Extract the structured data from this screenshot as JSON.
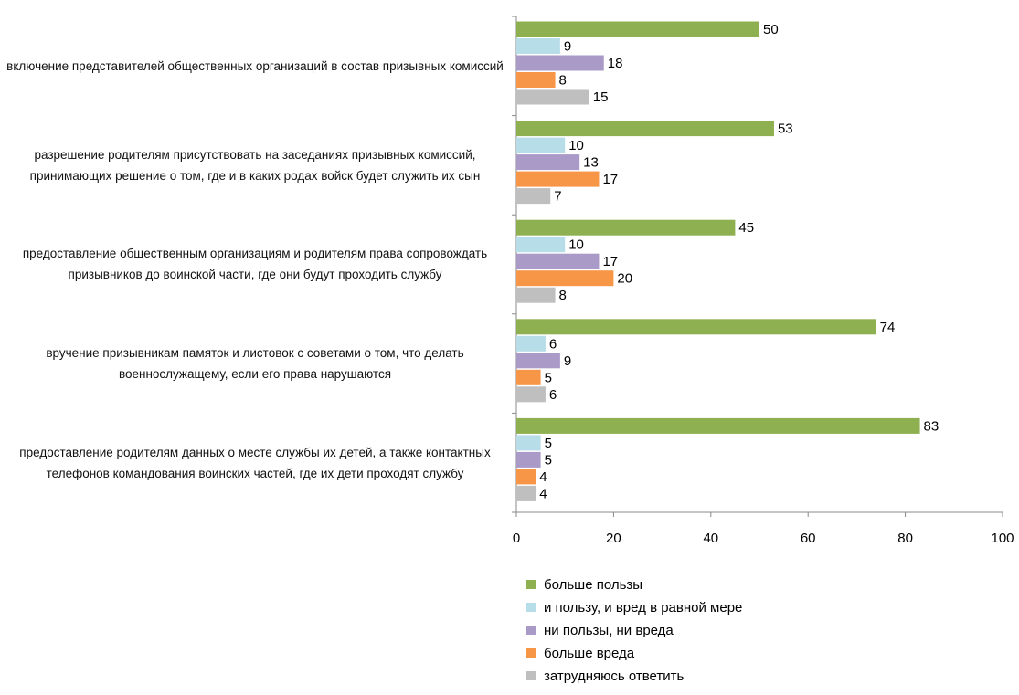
{
  "chart_data": {
    "type": "barh",
    "categories": [
      "включение представителей общественных организаций в состав призывных комиссий",
      "разрешение родителям присутствовать на заседаниях призывных комиссий, принимающих решение о том, где и в каких родах войск будет служить их сын",
      "предоставление общественным организациям и родителям права сопровождать призывников до воинской части, где они будут проходить службу",
      "вручение призывникам памяток и листовок с советами о том, что делать военнослужащему, если его права нарушаются",
      "предоставление родителям данных о месте службы их детей, а также контактных телефонов командования воинских частей, где их дети проходят службу"
    ],
    "series": [
      {
        "name": "больше пользы",
        "color": "#8fb050",
        "values": [
          50,
          53,
          45,
          74,
          83
        ]
      },
      {
        "name": "и пользу, и вред в равной мере",
        "color": "#b7dde8",
        "values": [
          9,
          10,
          10,
          6,
          5
        ]
      },
      {
        "name": "ни пользы, ни вреда",
        "color": "#a99ac8",
        "values": [
          18,
          13,
          17,
          9,
          5
        ]
      },
      {
        "name": "больше вреда",
        "color": "#f79646",
        "values": [
          8,
          17,
          20,
          5,
          4
        ]
      },
      {
        "name": "затрудняюсь ответить",
        "color": "#bfbfbf",
        "values": [
          15,
          7,
          8,
          6,
          4
        ]
      }
    ],
    "xlim": [
      0,
      100
    ],
    "xticks": [
      0,
      20,
      40,
      60,
      80,
      100
    ],
    "legend": "bottom"
  }
}
